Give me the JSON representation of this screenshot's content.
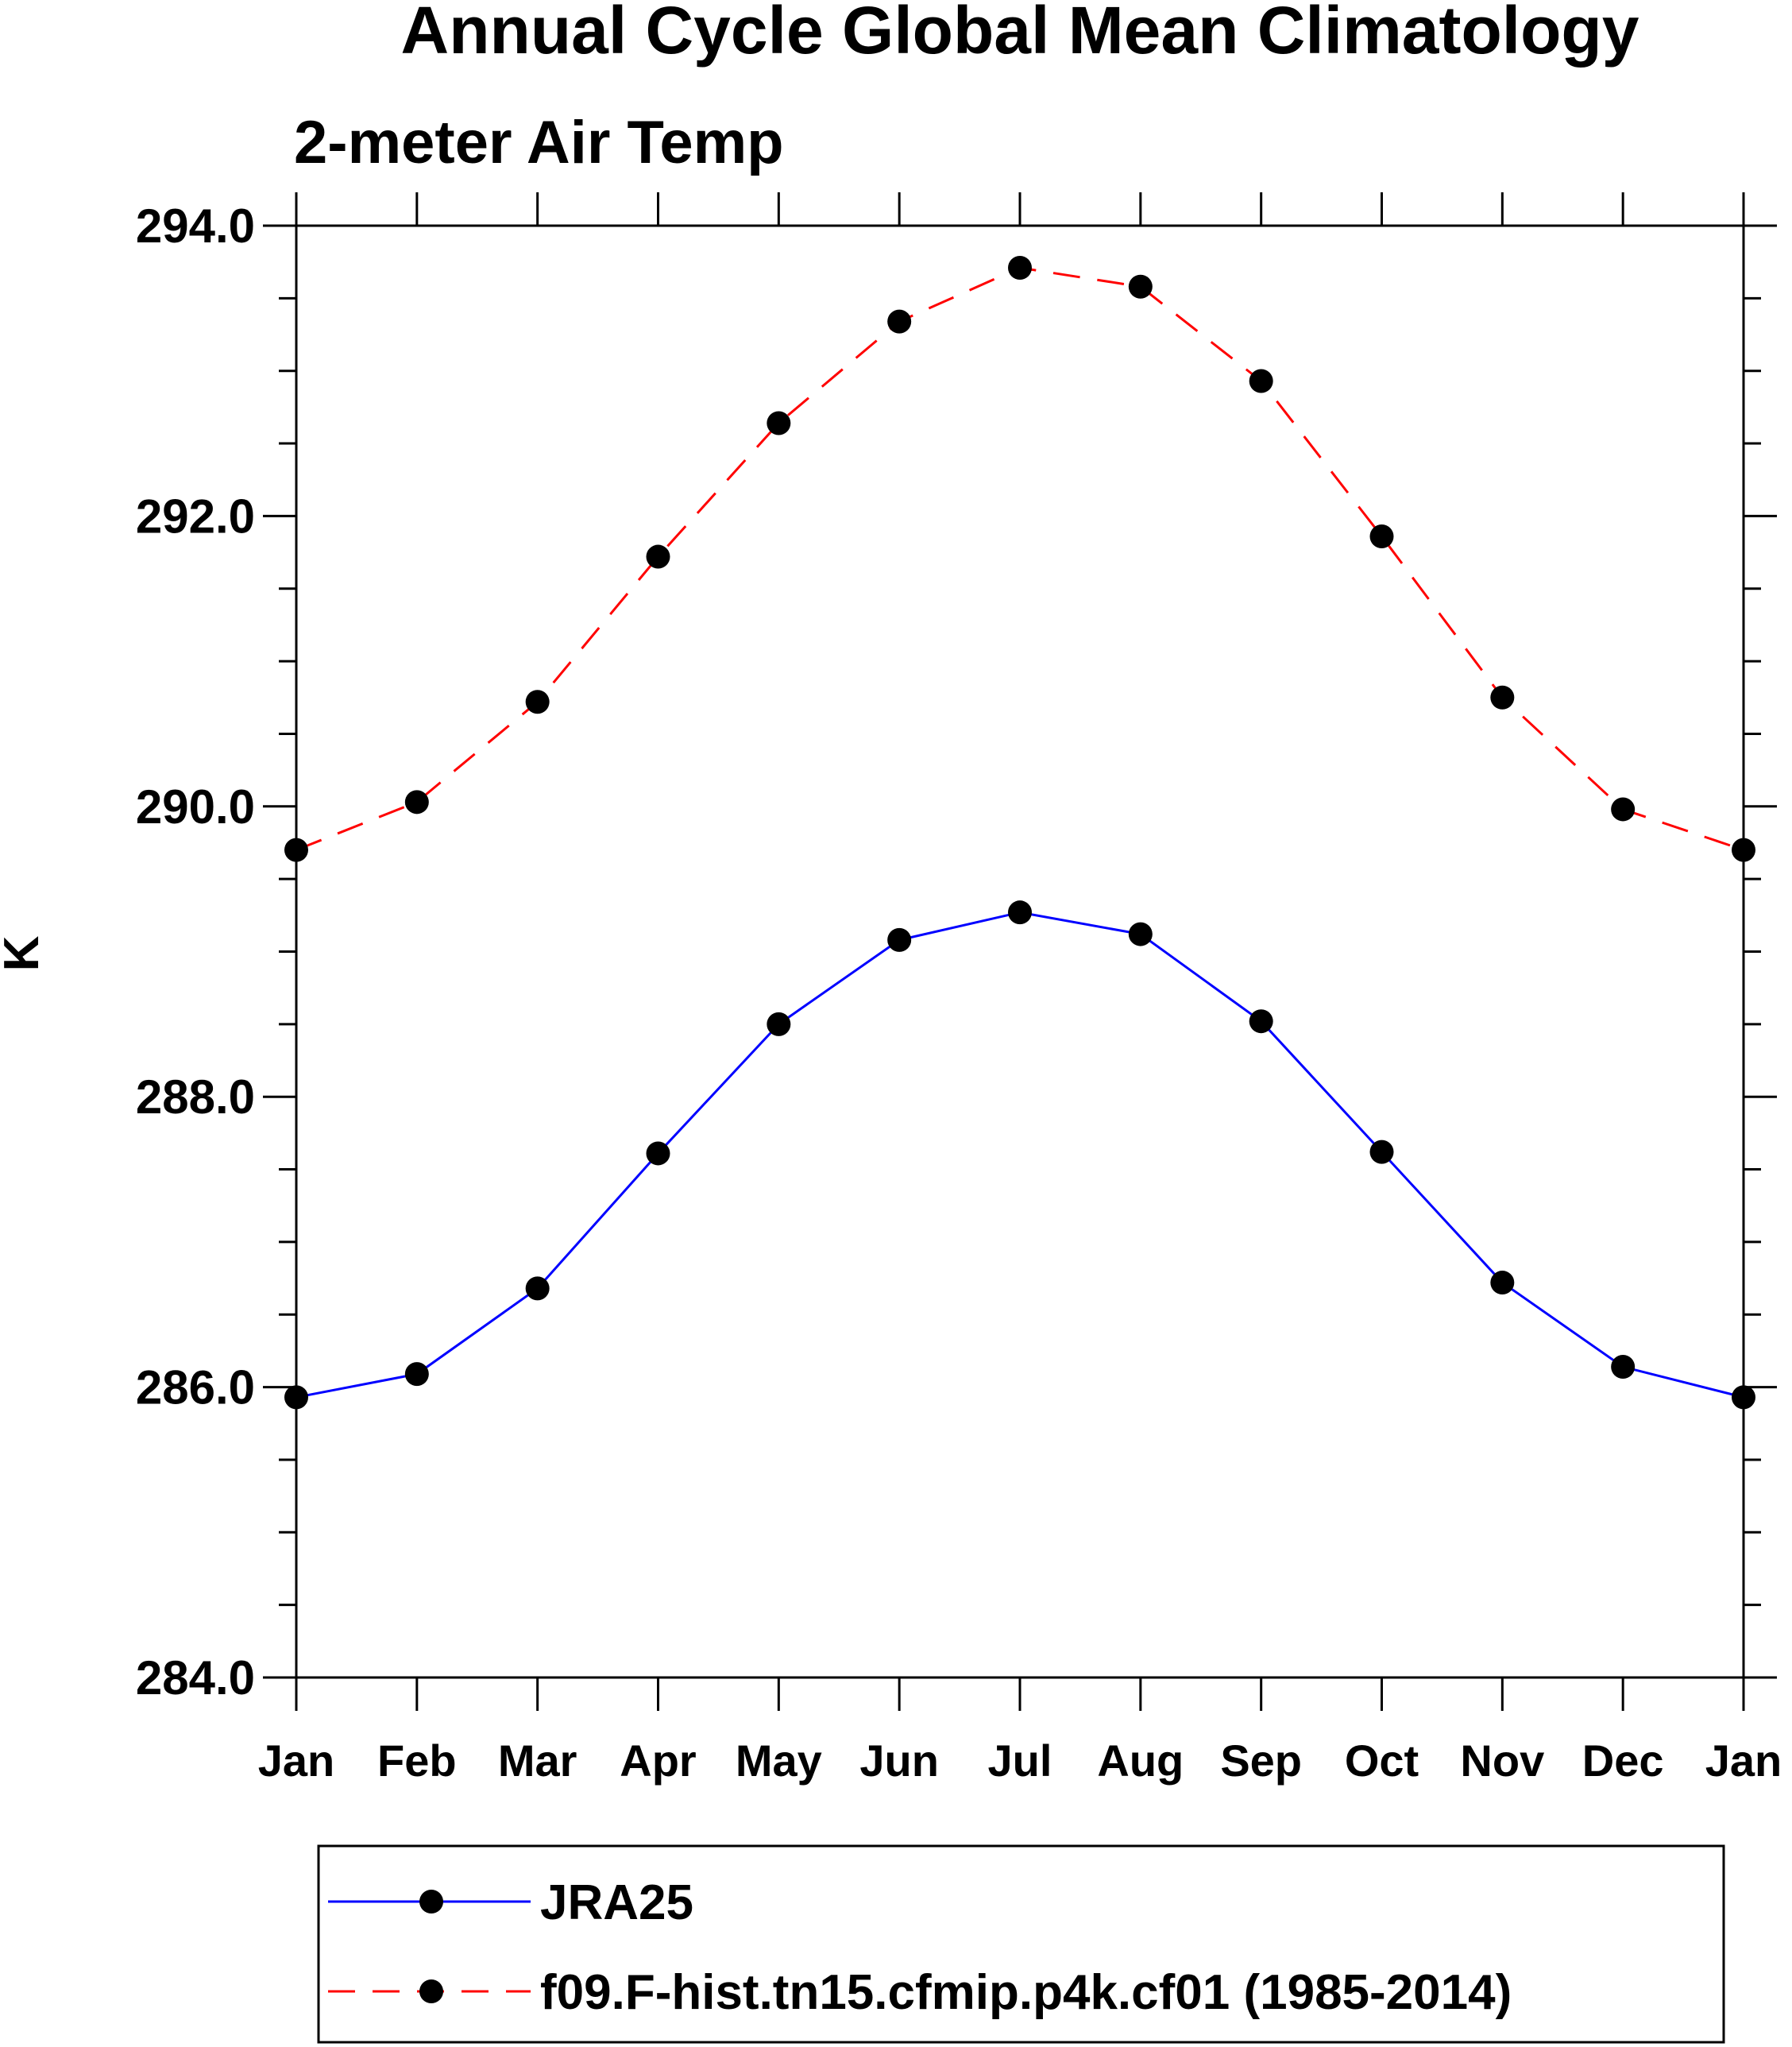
{
  "chart_data": {
    "type": "line",
    "title": "Annual Cycle Global Mean Climatology",
    "subtitle": "2-meter Air Temp",
    "ylabel": "K",
    "xlabel": "",
    "x": [
      "Jan",
      "Feb",
      "Mar",
      "Apr",
      "May",
      "Jun",
      "Jul",
      "Aug",
      "Sep",
      "Oct",
      "Nov",
      "Dec",
      "Jan"
    ],
    "ylim": [
      284.0,
      294.0
    ],
    "yticks": [
      "294.0",
      "292.0",
      "290.0",
      "288.0",
      "286.0",
      "284.0"
    ],
    "yticks_values": [
      294,
      292,
      290,
      288,
      286,
      284
    ],
    "grid": false,
    "legend_position": "bottom",
    "series": [
      {
        "name": "JRA25",
        "color": "#0000ff",
        "line_style": "solid",
        "marker": "filled-circle",
        "values": [
          285.93,
          286.09,
          286.68,
          287.61,
          288.5,
          289.08,
          289.27,
          289.12,
          288.52,
          287.62,
          286.72,
          286.14,
          285.93
        ]
      },
      {
        "name": "f09.F-hist.tn15.cfmip.p4k.cf01 (1985-2014)",
        "color": "#ff0000",
        "line_style": "dashed",
        "marker": "filled-circle",
        "values": [
          289.7,
          290.03,
          290.72,
          291.72,
          292.64,
          293.34,
          293.71,
          293.58,
          292.93,
          291.86,
          290.75,
          289.98,
          289.7
        ]
      }
    ]
  }
}
